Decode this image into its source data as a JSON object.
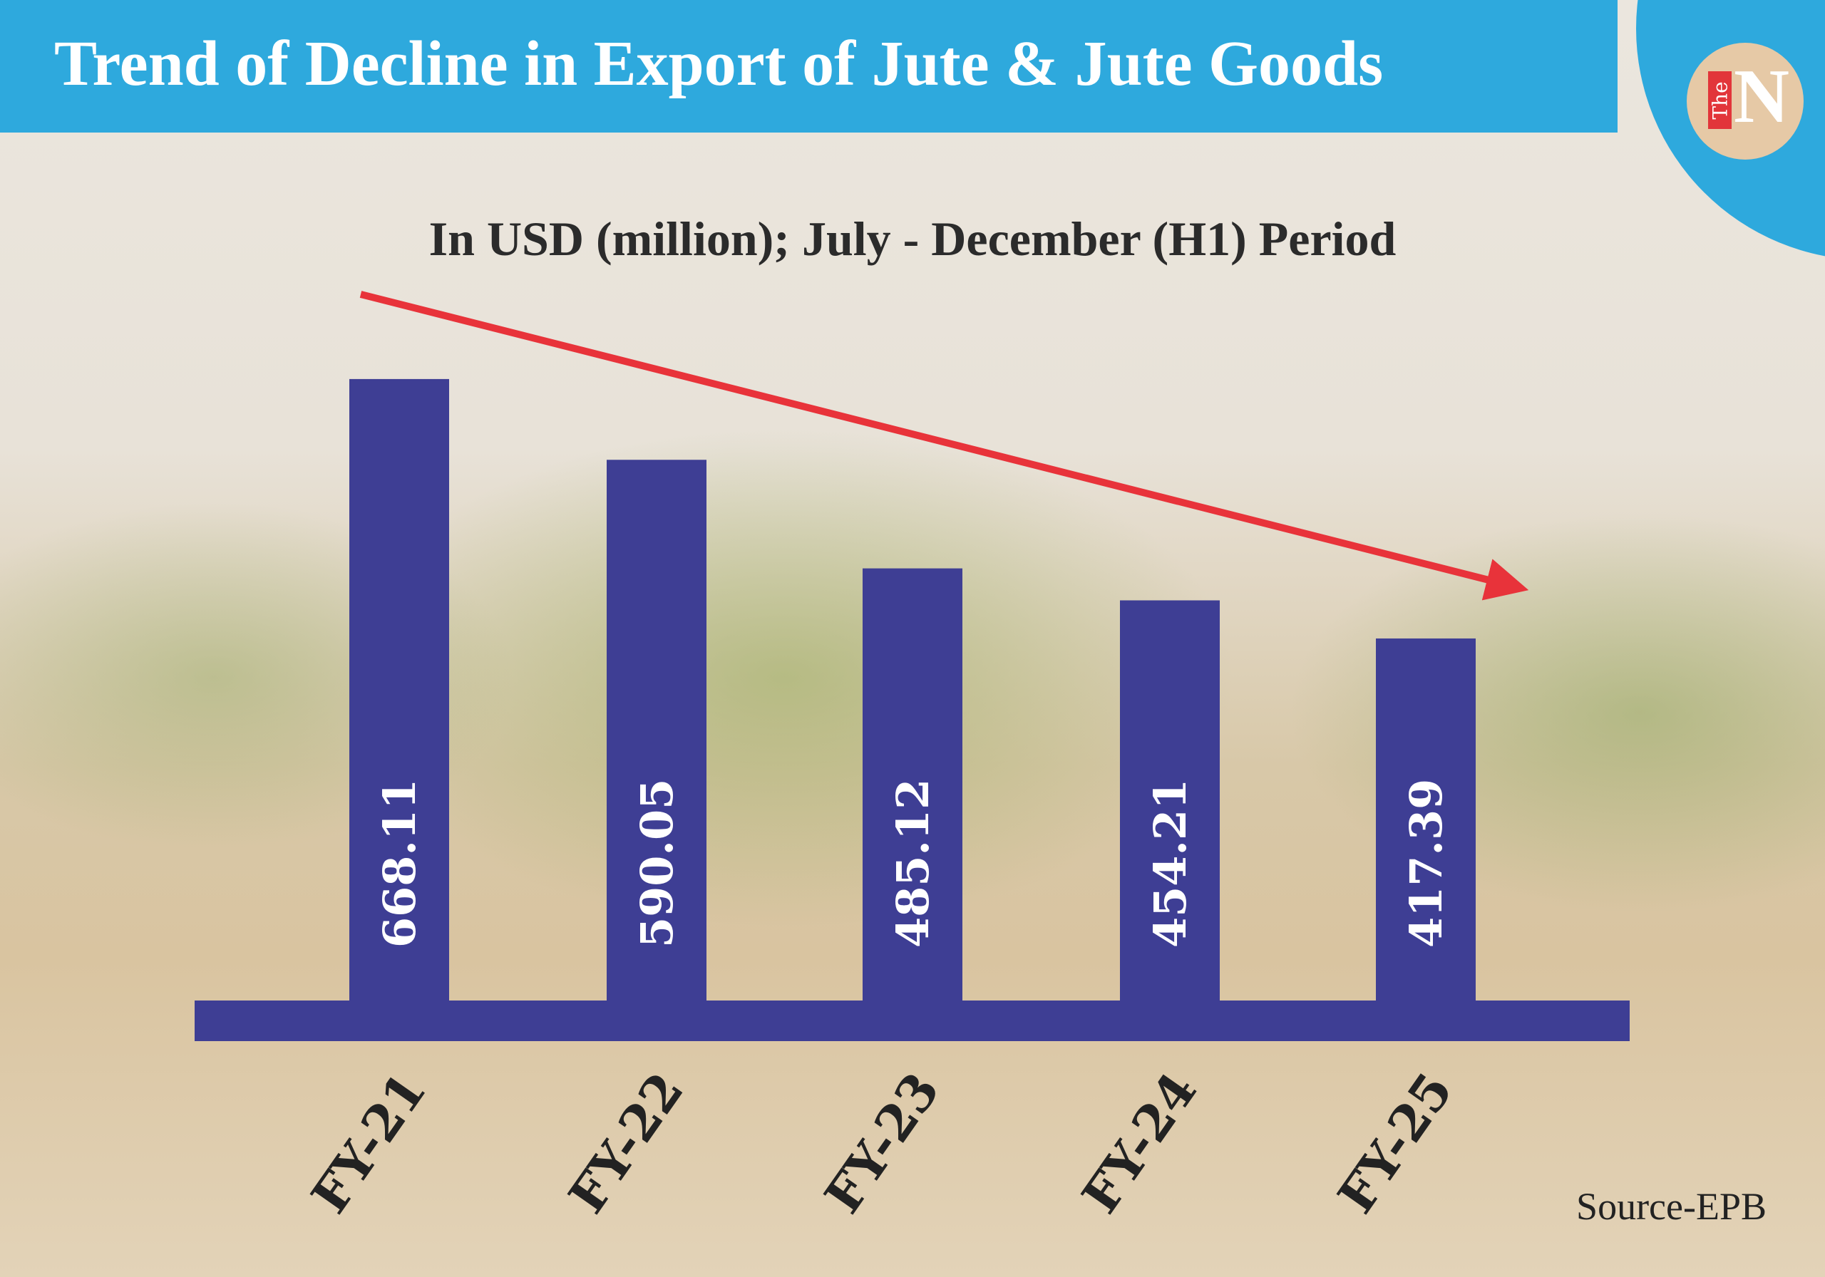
{
  "header": {
    "title": "Trend of Decline in Export of Jute & Jute Goods"
  },
  "logo": {
    "text_small": "The",
    "text_large": "N"
  },
  "colors": {
    "header_bg": "#2ea9dd",
    "bar": "#3e3e94",
    "arrow": "#e8333a",
    "logo_bg": "#e6c9a6",
    "logo_red": "#e2353a"
  },
  "chart_data": {
    "type": "bar",
    "title": "In USD (million); July - December (H1) Period",
    "categories": [
      "FY-21",
      "FY-22",
      "FY-23",
      "FY-24",
      "FY-25"
    ],
    "values": [
      668.11,
      590.05,
      485.12,
      454.21,
      417.39
    ],
    "value_labels": [
      "668.11",
      "590.05",
      "485.12",
      "454.21",
      "417.39"
    ],
    "trend_arrow": "downward",
    "grid": false
  },
  "source": "Source-EPB"
}
